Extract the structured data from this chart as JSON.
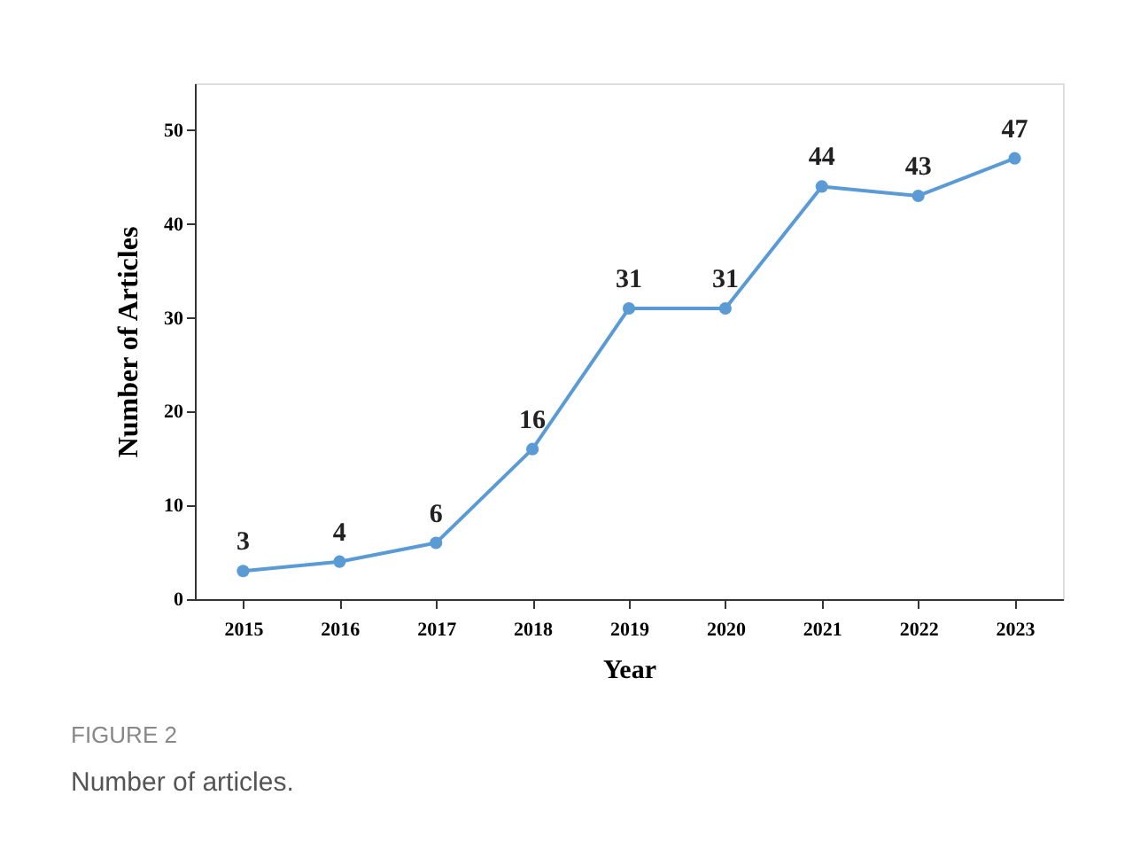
{
  "chart_data": {
    "type": "line",
    "xlabel": "Year",
    "ylabel": "Number of Articles",
    "categories": [
      "2015",
      "2016",
      "2017",
      "2018",
      "2019",
      "2020",
      "2021",
      "2022",
      "2023"
    ],
    "series": [
      {
        "color": "#5b9bd5",
        "values": [
          3,
          4,
          6,
          16,
          31,
          31,
          44,
          43,
          47
        ]
      }
    ],
    "ylim": [
      0,
      55
    ],
    "yticks": [
      0,
      10,
      20,
      30,
      40,
      50
    ],
    "data_labels": true,
    "marker": "circle",
    "grid": false,
    "legend": false,
    "annotations": [
      "FIGURE 2",
      "Number of articles."
    ]
  }
}
